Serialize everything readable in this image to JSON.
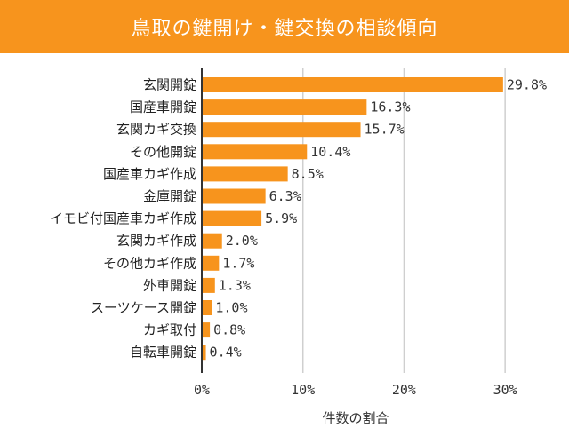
{
  "title": "鳥取の鍵開け・鍵交換の相談傾向",
  "colors": {
    "bar": "#f7941d",
    "title_bg": "#f7941d",
    "grid": "#cfcfcf",
    "axis": "#333333"
  },
  "chart_data": {
    "type": "bar",
    "orientation": "horizontal",
    "title": "鳥取の鍵開け・鍵交換の相談傾向",
    "xlabel": "件数の割合",
    "ylabel": "",
    "xlim": [
      0,
      35
    ],
    "xticks": [
      0,
      10,
      20,
      30
    ],
    "xtick_labels": [
      "0%",
      "10%",
      "20%",
      "30%"
    ],
    "categories": [
      "玄関開錠",
      "国産車開錠",
      "玄関カギ交換",
      "その他開錠",
      "国産車カギ作成",
      "金庫開錠",
      "イモビ付国産車カギ作成",
      "玄関カギ作成",
      "その他カギ作成",
      "外車開錠",
      "スーツケース開錠",
      "カギ取付",
      "自転車開錠"
    ],
    "values": [
      29.8,
      16.3,
      15.7,
      10.4,
      8.5,
      6.3,
      5.9,
      2.0,
      1.7,
      1.3,
      1.0,
      0.8,
      0.4
    ],
    "value_labels": [
      "29.8%",
      "16.3%",
      "15.7%",
      "10.4%",
      "8.5%",
      "6.3%",
      "5.9%",
      "2.0%",
      "1.7%",
      "1.3%",
      "1.0%",
      "0.8%",
      "0.4%"
    ]
  }
}
